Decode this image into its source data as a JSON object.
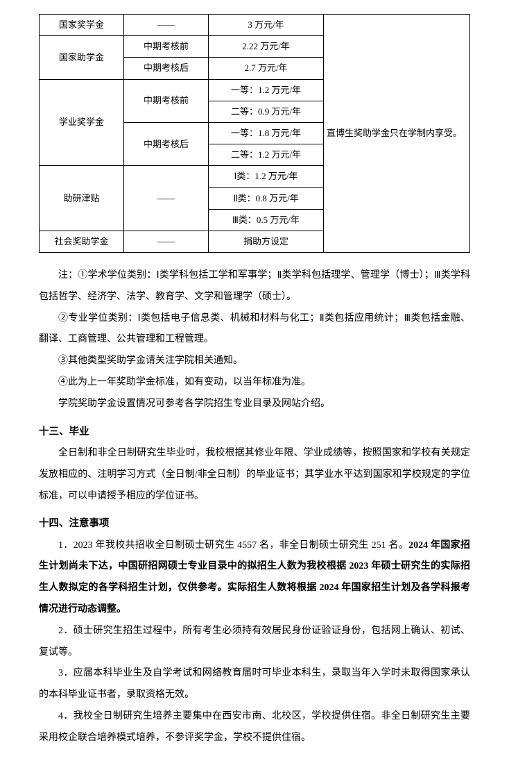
{
  "table": {
    "rows": {
      "r1_c1": "国家奖学金",
      "r1_c2": "——",
      "r1_c3": "3 万元/年",
      "r2_c1": "国家助学金",
      "r2_c2": "中期考核前",
      "r2_c3": "2.22 万元/年",
      "r3_c2": "中期考核后",
      "r3_c3": "2.7 万元/年",
      "r4_c1": "学业奖学金",
      "r4_c2": "中期考核前",
      "r4_c3": "一等：1.2 万元/年",
      "r5_c3": "二等：0.9 万元/年",
      "r6_c2": "中期考核后",
      "r6_c3": "一等：1.8 万元/年",
      "r7_c3": "二等：1.2 万元/年",
      "r8_c1": "助研津贴",
      "r8_c2": "——",
      "r8_c3": "Ⅰ类：1.2 万元/年",
      "r9_c3": "Ⅱ类：0.8 万元/年",
      "r10_c3": "Ⅲ类：0.5 万元/年",
      "r11_c1": "社会奖助学金",
      "r11_c2": "——",
      "r11_c3": "捐助方设定",
      "note_col": "直博生奖助学金只在学制内享受。"
    }
  },
  "notes": {
    "n1": "注：①学术学位类别：Ⅰ类学科包括工学和军事学；Ⅱ类学科包括理学、管理学（博士）；Ⅲ类学科包括哲学、经济学、法学、教育学、文学和管理学（硕士）。",
    "n2": "②专业学位类别：Ⅰ类包括电子信息类、机械和材料与化工；Ⅱ类包括应用统计；Ⅲ类包括金融、翻译、工商管理、公共管理和工程管理。",
    "n3": "③其他类型奖助学金请关注学院相关通知。",
    "n4": "④此为上一年奖助学金标准，如有变动，以当年标准为准。",
    "n5": "学院奖助学金设置情况可参考各学院招生专业目录及网站介绍。"
  },
  "s13": {
    "title": "十三、毕业",
    "p1": "全日制和非全日制研究生毕业时，我校根据其修业年限、学业成绩等，按照国家和学校有关规定发放相应的、注明学习方式（全日制/非全日制）的毕业证书；其学业水平达到国家和学校规定的学位标准，可以申请授予相应的学位证书。"
  },
  "s14": {
    "title": "十四、注意事项",
    "p1a": "1．2023 年我校共招收全日制硕士研究生 4557 名，非全日制硕士研究生 251 名。",
    "p1b": "2024 年国家招生计划尚未下达，中国研招网硕士专业目录中的拟招生人数为我校根据 2023 年硕士研究生的实际招生人数拟定的各学科招生计划，仅供参考。实际招生人数将根据 2024 年国家招生计划及各学科报考情况进行动态调整。",
    "p2": "2．硕士研究生招生过程中，所有考生必须持有效居民身份证验证身份，包括网上确认、初试、复试等。",
    "p3": "3．应届本科毕业生及自学考试和网络教育届时可毕业本科生，录取当年入学时未取得国家承认的本科毕业证书者，录取资格无效。",
    "p4": "4．我校全日制研究生培养主要集中在西安市南、北校区，学校提供住宿。非全日制研究生主要采用校企联合培养模式培养，不参评奖学金，学校不提供住宿。"
  }
}
